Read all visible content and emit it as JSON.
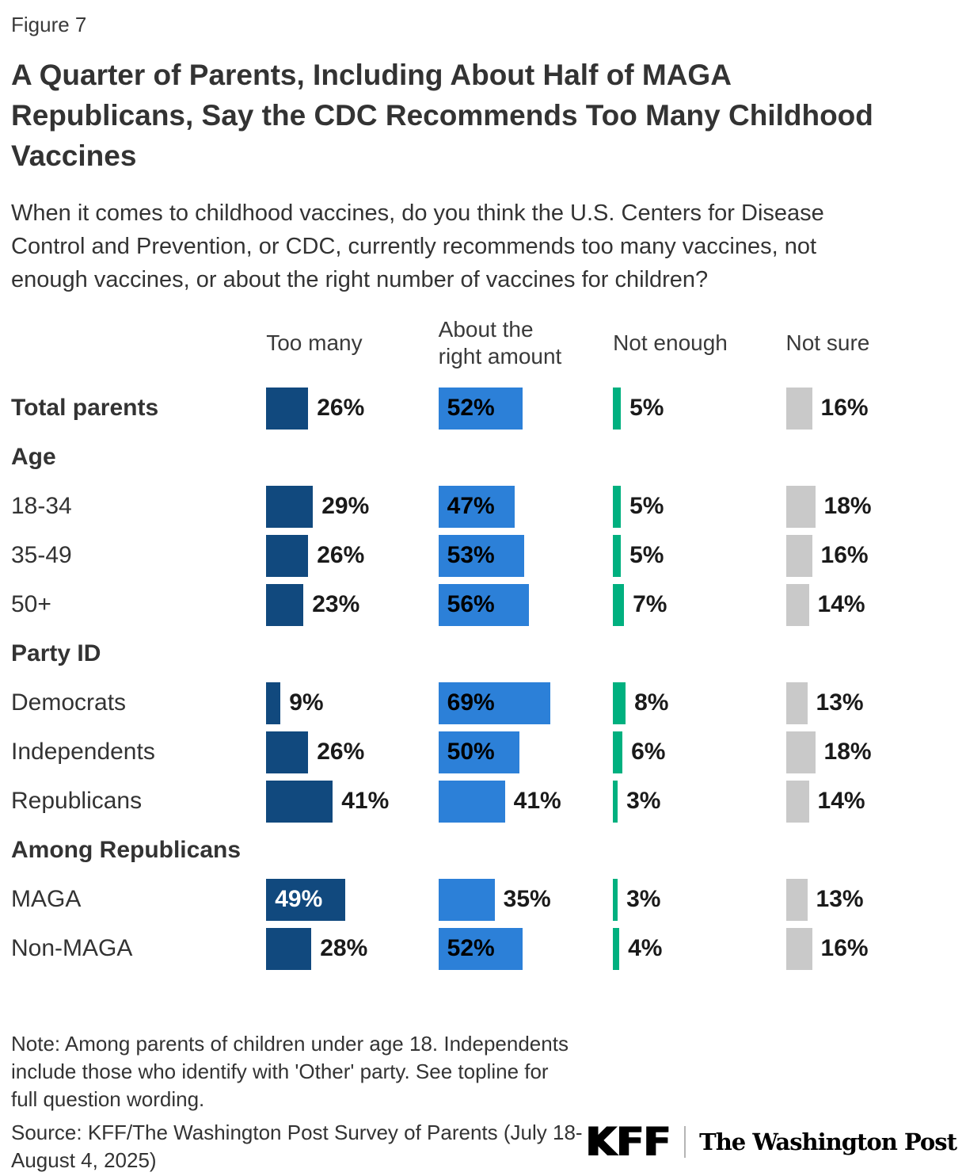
{
  "figure_label": "Figure 7",
  "chart_data": {
    "type": "bar",
    "title": "A Quarter of Parents, Including About Half of MAGA Republicans, Say the CDC Recommends Too Many Childhood Vaccines",
    "title_lines": [
      "A Quarter of Parents, Including About Half of MAGA",
      "Republicans, Say the CDC Recommends Too Many Childhood",
      "Vaccines"
    ],
    "subtitle": "When it comes to childhood vaccines, do you think the U.S. Centers for Disease Control and Prevention, or CDC, currently recommends too many vaccines, not enough vaccines, or about the right number of vaccines for children?",
    "subtitle_lines": [
      "When it comes to childhood vaccines, do you think the U.S. Centers for Disease",
      "Control and Prevention, or CDC, currently recommends too many vaccines, not",
      "enough vaccines, or about the right number of vaccines for children?"
    ],
    "columns": [
      {
        "key": "too-many",
        "label": "Too many",
        "label_lines": [
          "Too many"
        ],
        "color": "#11497E"
      },
      {
        "key": "about-right",
        "label": "About the right amount",
        "label_lines": [
          "About the",
          "right amount"
        ],
        "color": "#2C80D8"
      },
      {
        "key": "not-enough",
        "label": "Not enough",
        "label_lines": [
          "Not enough"
        ],
        "color": "#00B07F"
      },
      {
        "key": "not-sure",
        "label": "Not sure",
        "label_lines": [
          "Not sure"
        ],
        "color": "#C9C9C9"
      }
    ],
    "rows": [
      {
        "kind": "data",
        "label": "Total parents",
        "bold": true,
        "values": [
          26,
          52,
          5,
          16
        ],
        "label_pos": [
          "out",
          "in",
          "out",
          "out"
        ]
      },
      {
        "kind": "section",
        "label": "Age"
      },
      {
        "kind": "data",
        "label": "18-34",
        "values": [
          29,
          47,
          5,
          18
        ],
        "label_pos": [
          "out",
          "in",
          "out",
          "out"
        ]
      },
      {
        "kind": "data",
        "label": "35-49",
        "values": [
          26,
          53,
          5,
          16
        ],
        "label_pos": [
          "out",
          "in",
          "out",
          "out"
        ]
      },
      {
        "kind": "data",
        "label": "50+",
        "values": [
          23,
          56,
          7,
          14
        ],
        "label_pos": [
          "out",
          "in",
          "out",
          "out"
        ]
      },
      {
        "kind": "section",
        "label": "Party ID"
      },
      {
        "kind": "data",
        "label": "Democrats",
        "values": [
          9,
          69,
          8,
          13
        ],
        "label_pos": [
          "out",
          "in",
          "out",
          "out"
        ]
      },
      {
        "kind": "data",
        "label": "Independents",
        "values": [
          26,
          50,
          6,
          18
        ],
        "label_pos": [
          "out",
          "in",
          "out",
          "out"
        ]
      },
      {
        "kind": "data",
        "label": "Republicans",
        "values": [
          41,
          41,
          3,
          14
        ],
        "label_pos": [
          "out",
          "out",
          "out",
          "out"
        ]
      },
      {
        "kind": "section",
        "label": "Among Republicans"
      },
      {
        "kind": "data",
        "label": "MAGA",
        "values": [
          49,
          35,
          3,
          13
        ],
        "label_pos": [
          "in",
          "out",
          "out",
          "out"
        ]
      },
      {
        "kind": "data",
        "label": "Non-MAGA",
        "values": [
          28,
          52,
          4,
          16
        ],
        "label_pos": [
          "out",
          "in",
          "out",
          "out"
        ]
      }
    ],
    "value_suffix": "%",
    "legend_position": "top",
    "grid": false
  },
  "note": "Note: Among parents of children under age 18. Independents include those who identify with 'Other' party. See topline for full question wording.",
  "note_lines": [
    "Note: Among parents of children under age 18. Independents",
    "include those who identify with 'Other' party. See topline for",
    "full question wording."
  ],
  "source": "Source: KFF/The Washington Post Survey of Parents (July 18-August 4, 2025)",
  "source_lines": [
    "Source: KFF/The Washington Post Survey of Parents (July 18-",
    "August 4, 2025)"
  ],
  "logos": {
    "kff": "KFF",
    "washington_post": "The Washington Post"
  }
}
